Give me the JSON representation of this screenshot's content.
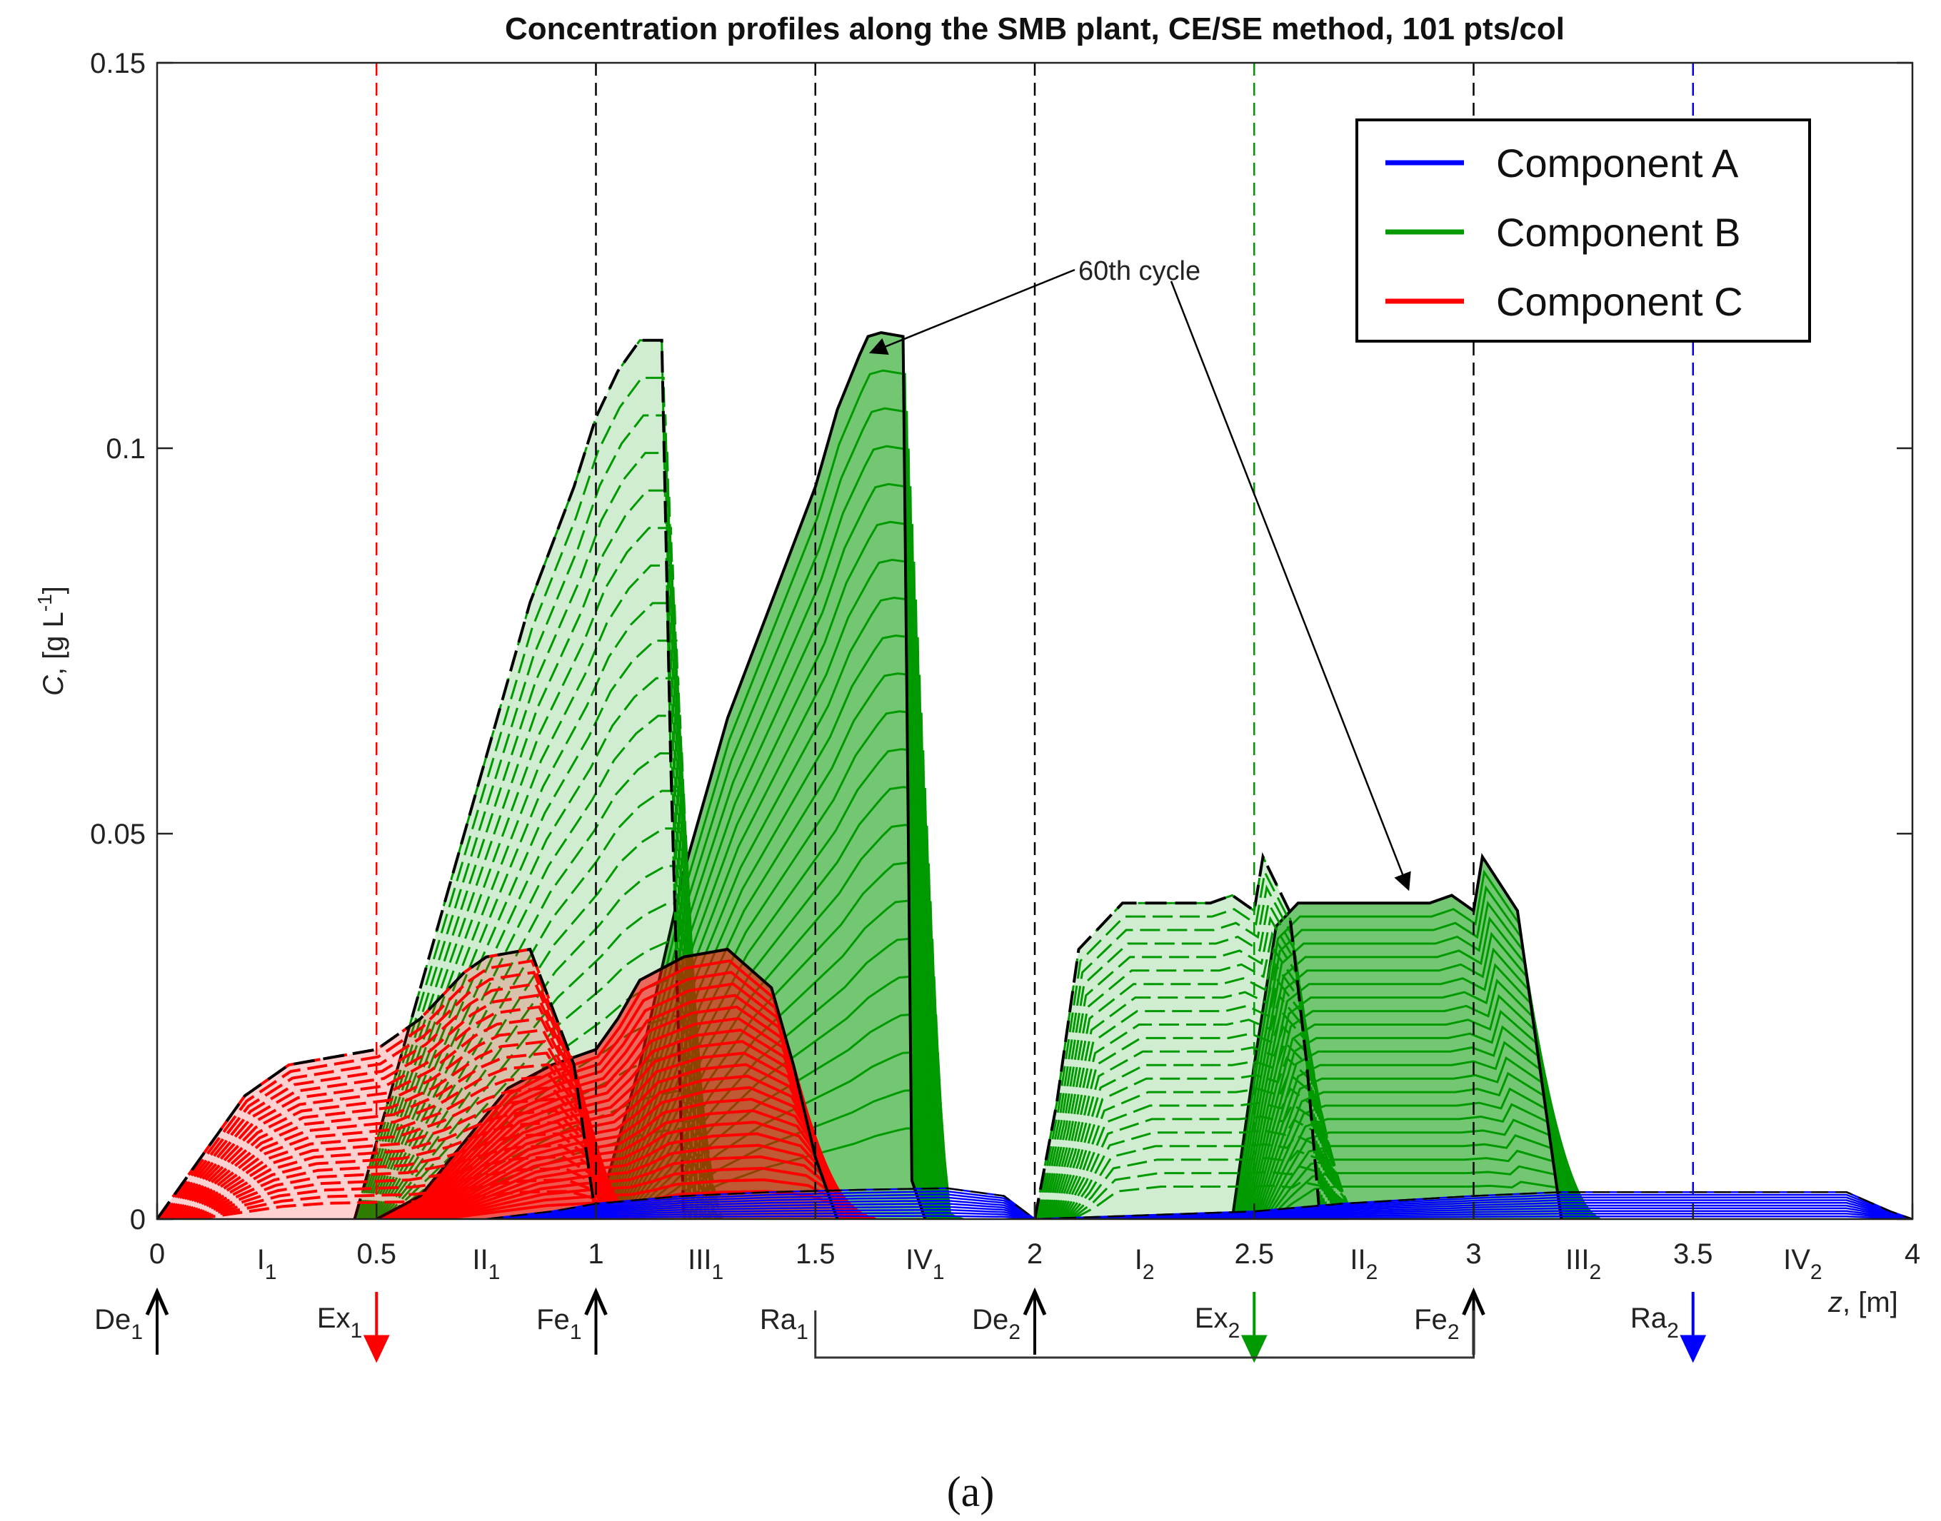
{
  "chart_data": {
    "type": "line",
    "title": "Concentration profiles along the SMB plant, CE/SE method, 101 pts/col",
    "ylabel": "C, [g L-1]",
    "ylabel_parts": {
      "italic": "C",
      "plain": ", [g L",
      "sup": "-1",
      "close": "]"
    },
    "xlabel": "z, [m]",
    "xlabel_parts": {
      "italic": "z",
      "plain": ", [m]"
    },
    "xlim": [
      0,
      4
    ],
    "ylim": [
      0,
      0.15
    ],
    "grid": false,
    "legend_position": "top-right",
    "x_ticks": [
      "0",
      "0.5",
      "1",
      "1.5",
      "2",
      "2.5",
      "3",
      "3.5",
      "4"
    ],
    "y_ticks": [
      "0",
      "0.05",
      "0.1",
      "0.15"
    ],
    "zone_labels": [
      {
        "x": 0.25,
        "main": "I",
        "sub": "1"
      },
      {
        "x": 0.75,
        "main": "II",
        "sub": "1"
      },
      {
        "x": 1.25,
        "main": "III",
        "sub": "1"
      },
      {
        "x": 1.75,
        "main": "IV",
        "sub": "1"
      },
      {
        "x": 2.25,
        "main": "I",
        "sub": "2"
      },
      {
        "x": 2.75,
        "main": "II",
        "sub": "2"
      },
      {
        "x": 3.25,
        "main": "III",
        "sub": "2"
      },
      {
        "x": 3.75,
        "main": "IV",
        "sub": "2"
      }
    ],
    "ports": [
      {
        "x": 0,
        "main": "De",
        "sub": "1",
        "direction": "in",
        "color": "#000000"
      },
      {
        "x": 0.5,
        "main": "Ex",
        "sub": "1",
        "direction": "out",
        "color": "#ff0000"
      },
      {
        "x": 1,
        "main": "Fe",
        "sub": "1",
        "direction": "in",
        "color": "#000000"
      },
      {
        "x": 1.5,
        "main": "Ra",
        "sub": "1",
        "direction": "none",
        "color": "#000000"
      },
      {
        "x": 2,
        "main": "De",
        "sub": "2",
        "direction": "in",
        "color": "#000000"
      },
      {
        "x": 2.5,
        "main": "Ex",
        "sub": "2",
        "direction": "out",
        "color": "#009900"
      },
      {
        "x": 3,
        "main": "Fe",
        "sub": "2",
        "direction": "in",
        "color": "#000000"
      },
      {
        "x": 3.5,
        "main": "Ra",
        "sub": "2",
        "direction": "out",
        "color": "#0000ff"
      }
    ],
    "port_lines": [
      {
        "x": 0.5,
        "color": "#ff0000"
      },
      {
        "x": 1,
        "color": "#000000"
      },
      {
        "x": 1.5,
        "color": "#000000"
      },
      {
        "x": 2,
        "color": "#000000"
      },
      {
        "x": 2.5,
        "color": "#009900"
      },
      {
        "x": 3,
        "color": "#000000"
      },
      {
        "x": 3.5,
        "color": "#0000ff"
      }
    ],
    "recycle_link": {
      "from": 1.5,
      "to": 3
    },
    "annotation": {
      "text": "60th cycle",
      "targets": [
        [
          1.63,
          0.1125
        ],
        [
          2.85,
          0.043
        ]
      ]
    },
    "series": [
      {
        "name": "Component A",
        "color": "#0000ff",
        "x": [
          0.75,
          0.9,
          1.0,
          1.2,
          1.4,
          1.6,
          1.8,
          1.93,
          2.0,
          2.5,
          2.7,
          3.0,
          3.2,
          3.5,
          3.7,
          3.85,
          3.95,
          4.0
        ],
        "y": [
          0,
          0.001,
          0.002,
          0.003,
          0.0035,
          0.0038,
          0.004,
          0.003,
          0,
          0.001,
          0.002,
          0.003,
          0.0035,
          0.0035,
          0.0035,
          0.0035,
          0.001,
          0
        ]
      },
      {
        "name": "Component B",
        "color": "#009900",
        "x": [
          0.45,
          0.55,
          0.7,
          0.85,
          0.95,
          1.0,
          1.05,
          1.1,
          1.15,
          1.25,
          1.35,
          1.45,
          1.5,
          1.55,
          1.6,
          1.7,
          1.75,
          1.8,
          1.9,
          2.0,
          2.2,
          2.3,
          2.4,
          2.5,
          2.55,
          2.65,
          2.75,
          2.8,
          2.9,
          2.95,
          3.0,
          3.02,
          3.1,
          3.15,
          3.2,
          3.3,
          3.5
        ],
        "y": [
          0,
          0.02,
          0.045,
          0.07,
          0.085,
          0.095,
          0.105,
          0.11,
          0.115,
          0.08,
          0.04,
          0.01,
          0.004,
          0.002,
          0.001,
          0.0005,
          0,
          0,
          0,
          0,
          0.001,
          0.005,
          0.02,
          0.035,
          0.04,
          0.041,
          0.041,
          0.041,
          0.04,
          0.042,
          0.04,
          0.047,
          0.04,
          0.03,
          0.01,
          0.002,
          0
        ]
      },
      {
        "name": "Component C",
        "color": "#ff0000",
        "x": [
          0,
          0.1,
          0.2,
          0.3,
          0.4,
          0.5,
          0.6,
          0.75,
          0.85,
          0.9,
          1.0,
          1.1,
          1.2,
          1.3,
          1.4,
          1.5,
          1.6,
          1.7,
          2.0
        ],
        "y": [
          0,
          0.008,
          0.016,
          0.02,
          0.021,
          0.022,
          0.025,
          0.032,
          0.035,
          0.03,
          0.022,
          0.026,
          0.032,
          0.035,
          0.03,
          0.015,
          0.004,
          0.001,
          0
        ]
      }
    ],
    "history": [
      {
        "name": "B-right-60th",
        "color": "#009900",
        "x": [
          1.0,
          1.1,
          1.2,
          1.3,
          1.4,
          1.5,
          1.55,
          1.6,
          1.62,
          1.65,
          1.7,
          1.71,
          1.72,
          1.75
        ],
        "y": [
          0,
          0.02,
          0.045,
          0.065,
          0.08,
          0.095,
          0.105,
          0.112,
          0.1145,
          0.115,
          0.1145,
          0.06,
          0.005,
          0
        ]
      },
      {
        "name": "B-left",
        "color": "#009900",
        "x": [
          0.45,
          0.55,
          0.65,
          0.75,
          0.85,
          0.95,
          1.0,
          1.05,
          1.1,
          1.15,
          1.17,
          1.2
        ],
        "y": [
          0,
          0.02,
          0.04,
          0.06,
          0.08,
          0.095,
          0.104,
          0.11,
          0.114,
          0.114,
          0.06,
          0
        ]
      },
      {
        "name": "C-right-60th",
        "color": "#ff0000",
        "x": [
          0.5,
          0.6,
          0.7,
          0.8,
          0.9,
          0.95,
          1.0,
          1.05,
          1.1,
          1.2,
          1.3,
          1.4,
          1.45,
          1.5,
          1.55
        ],
        "y": [
          0,
          0.003,
          0.01,
          0.017,
          0.02,
          0.021,
          0.022,
          0.026,
          0.031,
          0.034,
          0.035,
          0.03,
          0.02,
          0.008,
          0
        ]
      },
      {
        "name": "C-left",
        "color": "#ff0000",
        "x": [
          0,
          0.1,
          0.2,
          0.3,
          0.4,
          0.5,
          0.6,
          0.7,
          0.75,
          0.85,
          0.95,
          1.0
        ],
        "y": [
          0,
          0.008,
          0.016,
          0.02,
          0.021,
          0.022,
          0.026,
          0.032,
          0.034,
          0.035,
          0.02,
          0
        ]
      },
      {
        "name": "B-cycle2-right",
        "color": "#009900",
        "x": [
          2.45,
          2.5,
          2.55,
          2.6,
          2.7,
          2.8,
          2.9,
          2.95,
          3.0,
          3.02,
          3.1,
          3.15,
          3.2
        ],
        "y": [
          0,
          0.02,
          0.038,
          0.041,
          0.041,
          0.041,
          0.041,
          0.042,
          0.04,
          0.047,
          0.04,
          0.02,
          0
        ]
      },
      {
        "name": "B-cycle2-left",
        "color": "#009900",
        "x": [
          2.0,
          2.05,
          2.1,
          2.2,
          2.3,
          2.4,
          2.45,
          2.5,
          2.52,
          2.58,
          2.62,
          2.65
        ],
        "y": [
          0,
          0.015,
          0.035,
          0.041,
          0.041,
          0.041,
          0.042,
          0.04,
          0.047,
          0.04,
          0.02,
          0
        ]
      }
    ]
  },
  "panel_label": "(a)"
}
